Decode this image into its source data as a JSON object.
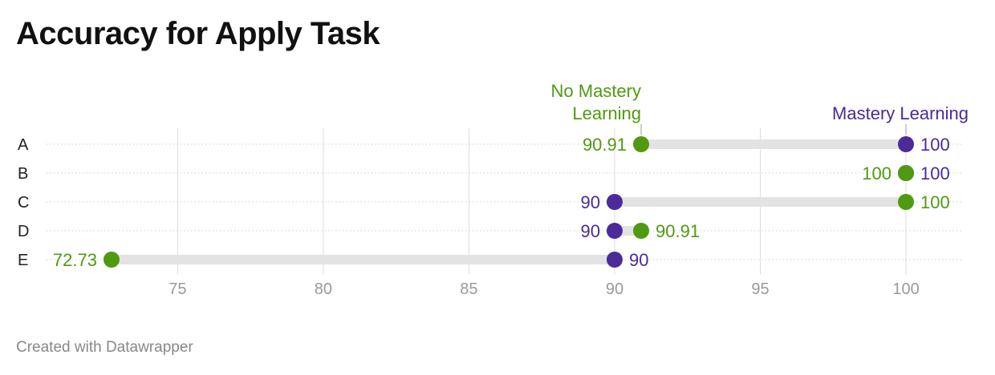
{
  "title": "Accuracy for Apply Task",
  "footer": "Created with Datawrapper",
  "chart_data": {
    "type": "dot",
    "title": "Accuracy for Apply Task",
    "xlabel": "",
    "ylabel": "",
    "xlim": [
      70.5,
      101.9
    ],
    "x_ticks": [
      75,
      80,
      85,
      90,
      95,
      100
    ],
    "grid": true,
    "categories": [
      "A",
      "B",
      "C",
      "D",
      "E"
    ],
    "series": [
      {
        "name": "Mastery Learning",
        "color": "#4b2a9a",
        "values": [
          100,
          100,
          90,
          90,
          90
        ],
        "labels": [
          "100",
          "100",
          "90",
          "90",
          "90"
        ]
      },
      {
        "name": "No Mastery Learning",
        "color": "#4f9a10",
        "values": [
          90.91,
          100,
          100,
          90.91,
          72.73
        ],
        "labels": [
          "90.91",
          "100",
          "100",
          "90.91",
          "72.73"
        ]
      }
    ],
    "label_colors": [
      [
        "#4b2a9a",
        "#4f9a10"
      ],
      [
        "#4b2a9a",
        "#4f9a10"
      ],
      [
        "#4f9a10",
        "#4b2a9a"
      ],
      [
        "#4f9a10",
        "#4b2a9a"
      ],
      [
        "#4b2a9a",
        "#4f9a10"
      ]
    ],
    "legend_placement": "inline-above-row-A",
    "legend": {
      "no_mastery_lines": [
        "No Mastery",
        "Learning"
      ],
      "mastery_lines": [
        "Mastery Learning"
      ]
    }
  }
}
